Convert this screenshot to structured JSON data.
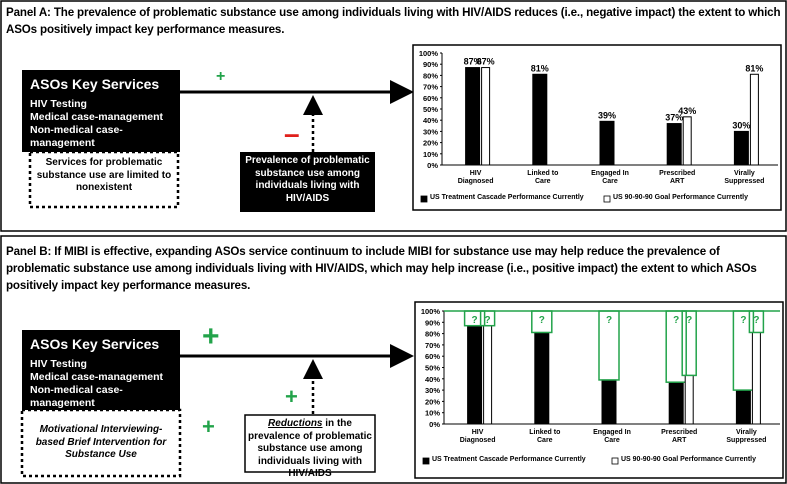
{
  "panel_a": {
    "title": "Panel A: The prevalence of problematic substance use among individuals living with HIV/AIDS reduces (i.e., negative impact) the extent to which ASOs positively impact key performance measures.",
    "services_title": "ASOs Key Services",
    "services": [
      "HIV Testing",
      "Medical case-management",
      "Non-medical case-management"
    ],
    "plus": "+",
    "minus": "–",
    "limited": "Services for problematic substance use are limited to nonexistent",
    "moderator": "Prevalence of problematic substance use among individuals living with HIV/AIDS"
  },
  "panel_b": {
    "title": "Panel B: If MIBI is effective, expanding ASOs service continuum to include MIBI for substance use may help reduce the prevalence of problematic substance use among individuals living with HIV/AIDS, which may help increase (i.e., positive impact) the extent to which ASOs positively impact key performance measures.",
    "services_title": "ASOs Key Services",
    "services": [
      "HIV Testing",
      "Medical case-management",
      "Non-medical case-management"
    ],
    "plus_labels": [
      "+",
      "+",
      "+"
    ],
    "mibi": "Motivational Interviewing-based Brief Intervention for Substance Use",
    "reductions_emphasis": "Reductions",
    "reductions_text": "in the prevalence of problematic substance use among individuals living with HIV/AIDS"
  },
  "chart_data": [
    {
      "type": "bar",
      "categories": [
        "HIV Diagnosed",
        "Linked to Care",
        "Engaged In Care",
        "Prescribed ART",
        "Virally Suppressed"
      ],
      "series": [
        {
          "name": "US Treatment Cascade Performance Currently",
          "color": "#000000",
          "values": [
            87,
            81,
            39,
            37,
            30
          ],
          "value_labels": [
            "87%",
            "81%",
            "39%",
            "37%",
            "30%"
          ]
        },
        {
          "name": "US 90-90-90 Goal Performance Currently",
          "color": "#ffffff",
          "values": [
            87,
            null,
            null,
            43,
            81
          ],
          "value_labels": [
            "87%",
            null,
            null,
            "43%",
            "81%"
          ]
        }
      ],
      "ylim": [
        0,
        100
      ],
      "yticks": [
        {
          "value": 0,
          "label": "0%"
        },
        {
          "value": 10,
          "label": "10%"
        },
        {
          "value": 20,
          "label": "20%"
        },
        {
          "value": 30,
          "label": "30%"
        },
        {
          "value": 40,
          "label": "40%"
        },
        {
          "value": 50,
          "label": "50%"
        },
        {
          "value": 60,
          "label": "60%"
        },
        {
          "value": 70,
          "label": "70%"
        },
        {
          "value": 80,
          "label": "80%"
        },
        {
          "value": 90,
          "label": "90%"
        },
        {
          "value": 100,
          "label": "100%"
        }
      ]
    },
    {
      "type": "bar",
      "categories": [
        "HIV Diagnosed",
        "Linked to Care",
        "Engaged In Care",
        "Prescribed ART",
        "Virally Suppressed"
      ],
      "series": [
        {
          "name": "US Treatment Cascade Performance Currently",
          "color": "#000000",
          "values": [
            87,
            81,
            39,
            37,
            30
          ]
        },
        {
          "name": "US 90-90-90 Goal Performance Currently",
          "color": "#ffffff",
          "values": [
            87,
            null,
            null,
            43,
            81
          ]
        }
      ],
      "unknown_label": "?",
      "gap_color": "#22a34a",
      "ylim": [
        0,
        100
      ],
      "yticks": [
        {
          "value": 0,
          "label": "0%"
        },
        {
          "value": 10,
          "label": "10%"
        },
        {
          "value": 20,
          "label": "20%"
        },
        {
          "value": 30,
          "label": "30%"
        },
        {
          "value": 40,
          "label": "40%"
        },
        {
          "value": 50,
          "label": "50%"
        },
        {
          "value": 60,
          "label": "60%"
        },
        {
          "value": 70,
          "label": "70%"
        },
        {
          "value": 80,
          "label": "80%"
        },
        {
          "value": 90,
          "label": "90%"
        },
        {
          "value": 100,
          "label": "100%"
        }
      ]
    }
  ]
}
